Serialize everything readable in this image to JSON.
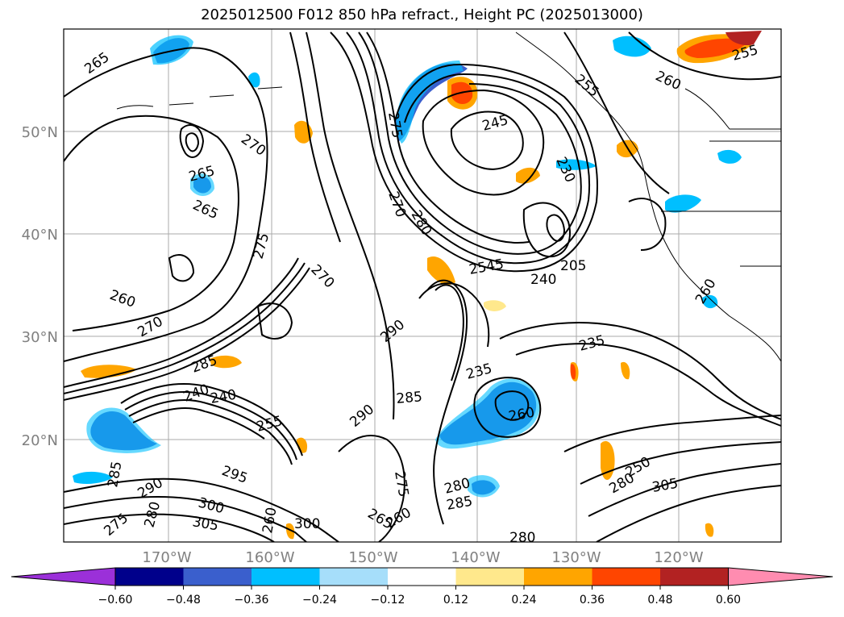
{
  "title": "2025012500 F012 850 hPa refract., Height PC (2025013000)",
  "lat_labels": [
    "50°N",
    "40°N",
    "30°N",
    "20°N"
  ],
  "lon_labels": [
    "170°W",
    "160°W",
    "150°W",
    "140°W",
    "130°W",
    "120°W"
  ],
  "colorbar": {
    "ticks": [
      "−0.60",
      "−0.48",
      "−0.36",
      "−0.24",
      "−0.12",
      "0.12",
      "0.24",
      "0.36",
      "0.48",
      "0.60"
    ],
    "colors": [
      "#9b30d9",
      "#00008b",
      "#3a5fcd",
      "#00bfff",
      "#a6defa",
      "#ffffff",
      "#ffe88c",
      "#ffa500",
      "#ff4500",
      "#b22222",
      "#ff8cb0"
    ]
  },
  "contour_labels": [
    "265",
    "270",
    "265",
    "265",
    "275",
    "260",
    "270",
    "270",
    "285",
    "240",
    "255",
    "295",
    "290",
    "300",
    "305",
    "280",
    "275",
    "285",
    "260",
    "290",
    "275",
    "270",
    "280",
    "300",
    "290",
    "245",
    "230",
    "255",
    "260",
    "255",
    "240",
    "205",
    "235",
    "235",
    "285",
    "260",
    "2545",
    "305",
    "280",
    "285",
    "275",
    "265",
    "260",
    "240",
    "260",
    "280",
    "280",
    "250"
  ]
}
